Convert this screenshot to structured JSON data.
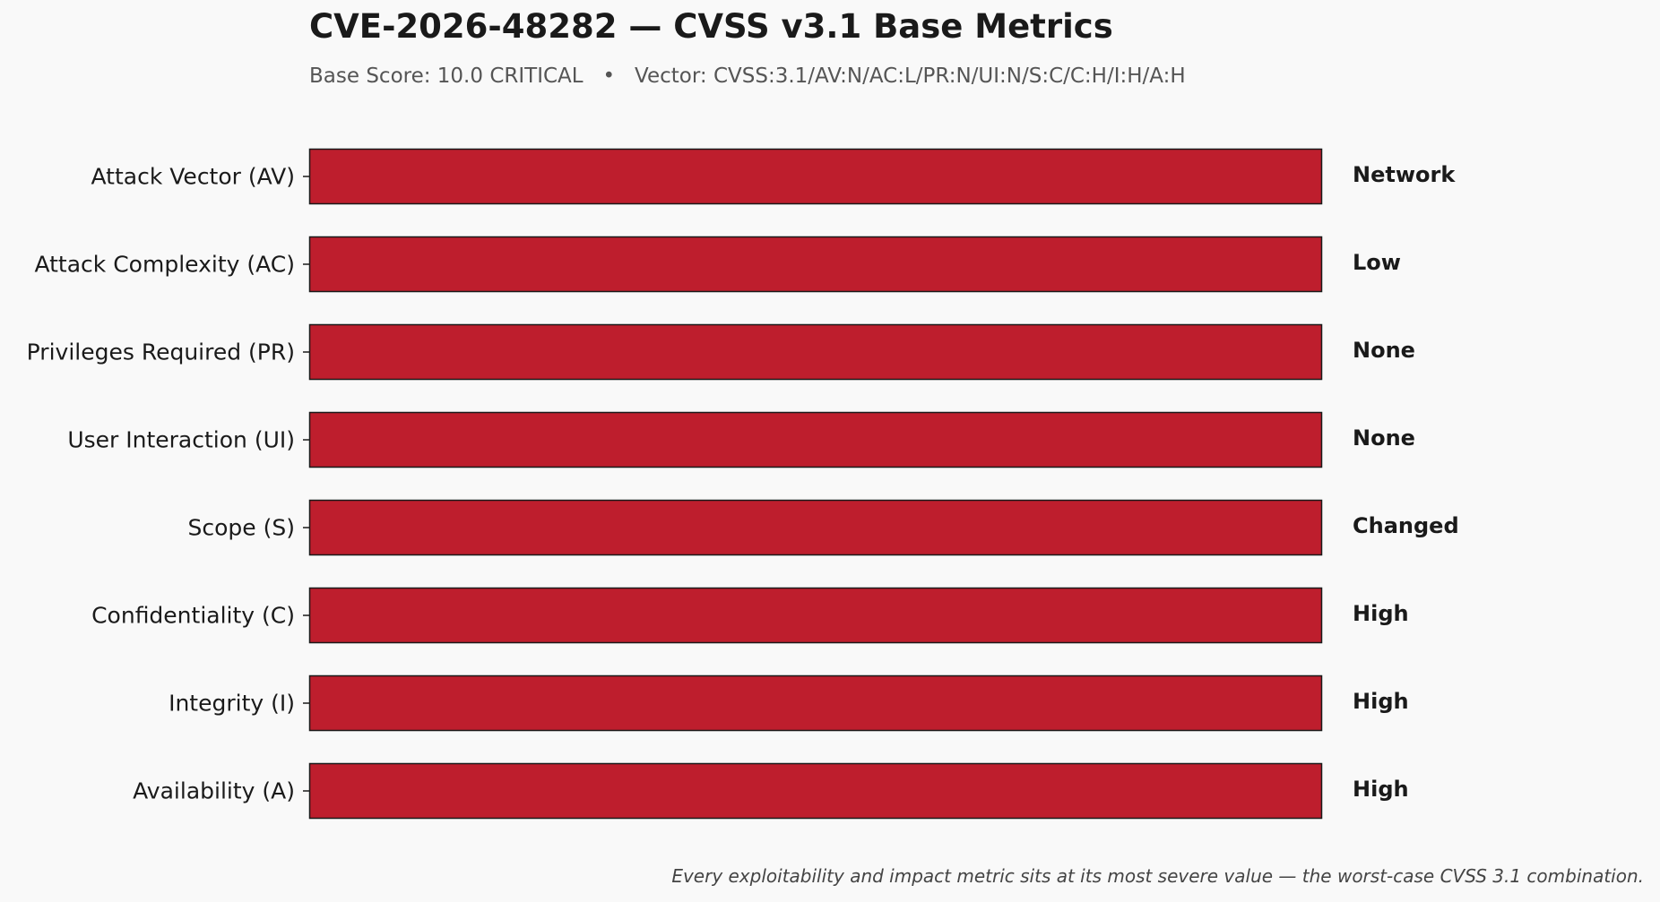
{
  "chart_data": {
    "type": "bar",
    "orientation": "horizontal",
    "title": "CVE-2026-48282 — CVSS v3.1 Base Metrics",
    "subtitle": "Base Score: 10.0 CRITICAL   •   Vector: CVSS:3.1/AV:N/AC:L/PR:N/UI:N/S:C/C:H/I:H/A:H",
    "categories": [
      "Attack Vector (AV)",
      "Attack Complexity (AC)",
      "Privileges Required (PR)",
      "User Interaction (UI)",
      "Scope (S)",
      "Confidentiality (C)",
      "Integrity (I)",
      "Availability (A)"
    ],
    "values": [
      1,
      1,
      1,
      1,
      1,
      1,
      1,
      1
    ],
    "value_labels": [
      "Network",
      "Low",
      "None",
      "None",
      "Changed",
      "High",
      "High",
      "High"
    ],
    "xlim": [
      0,
      1
    ],
    "xlabel": "",
    "ylabel": "",
    "grid": false,
    "legend": "none",
    "bar_color": "#be1e2d",
    "bar_edge_color": "#1a1a1a",
    "footnote": "Every exploitability and impact metric sits at its most severe value — the worst-case CVSS 3.1 combination."
  }
}
